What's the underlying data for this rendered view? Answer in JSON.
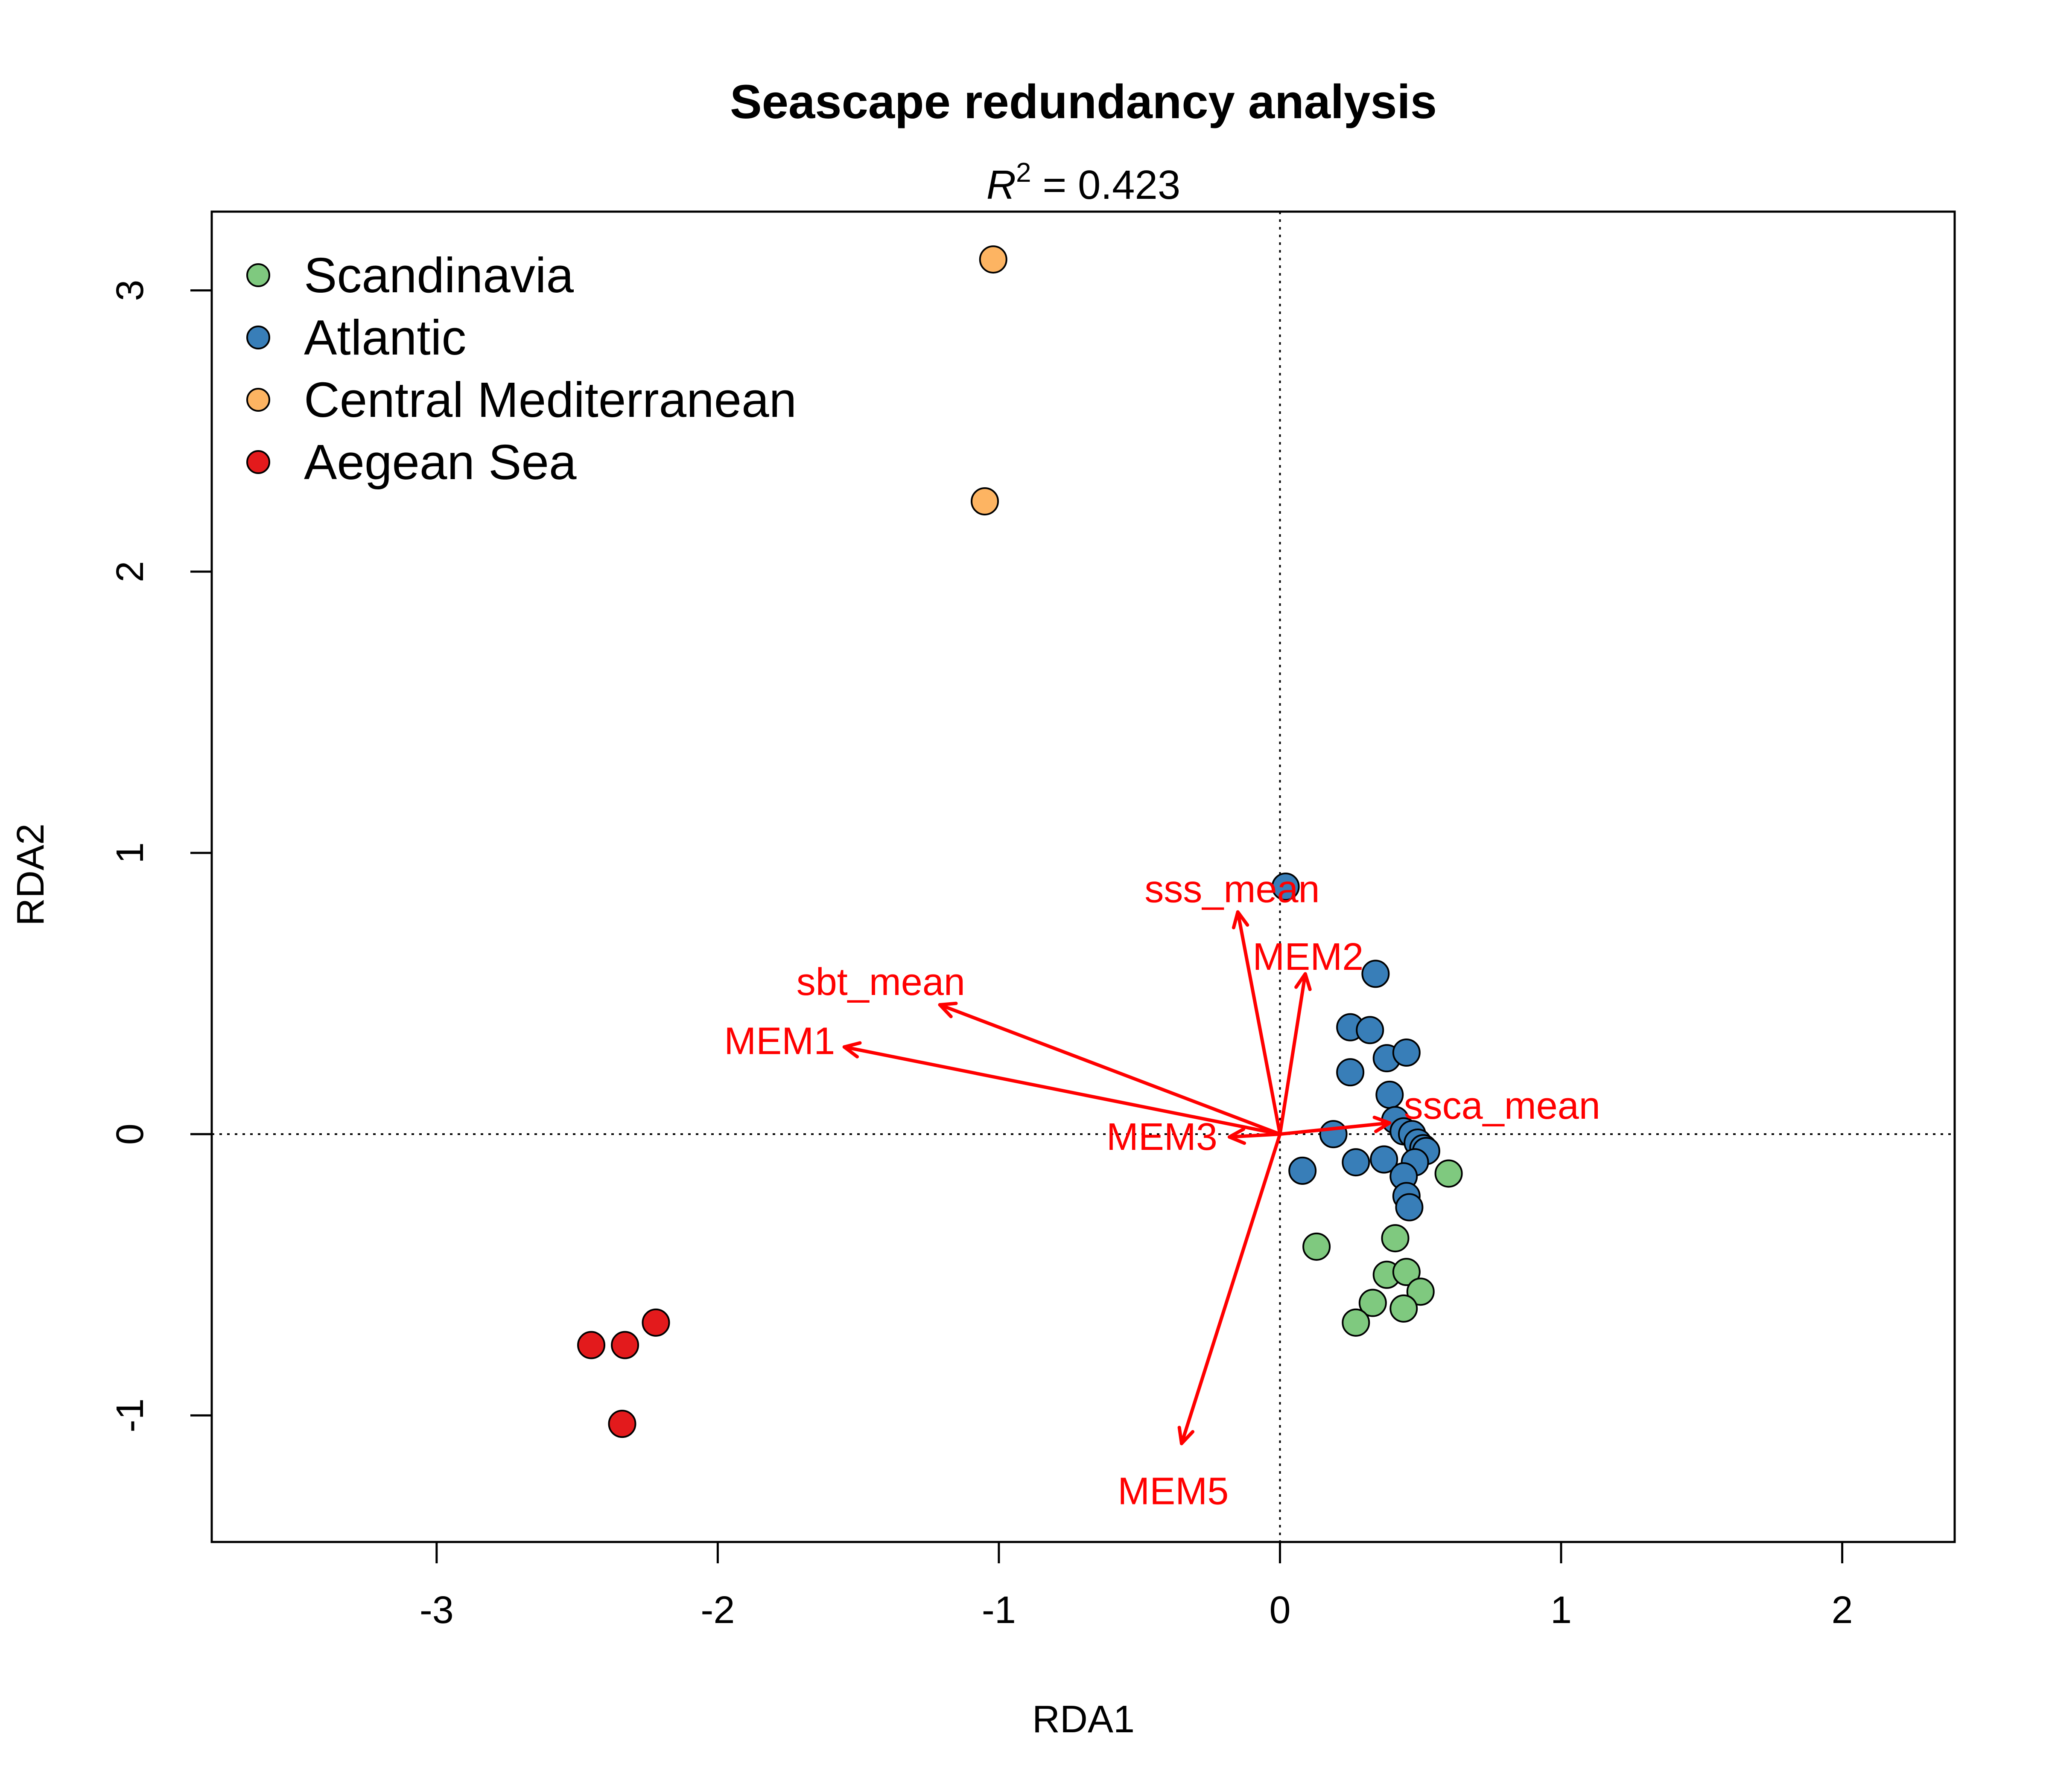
{
  "chart_data": {
    "type": "scatter",
    "title": "Seascape redundancy analysis",
    "subtitle": {
      "symbol": "R",
      "superscript": "2",
      "text": " =  0.423"
    },
    "xlabel": "RDA1",
    "ylabel": "RDA2",
    "xlim": [
      -3.8,
      2.4
    ],
    "ylim": [
      -1.45,
      3.28
    ],
    "xticks": [
      -3,
      -2,
      -1,
      0,
      1,
      2
    ],
    "yticks": [
      -1,
      0,
      1,
      2,
      3
    ],
    "reference_lines": {
      "x": 0,
      "y": 0,
      "style": "dotted"
    },
    "legend_position": "top-left",
    "series": [
      {
        "name": "Scandinavia",
        "color": "#7fc97f",
        "points": [
          [
            0.6,
            -0.14
          ],
          [
            0.13,
            -0.4
          ],
          [
            0.41,
            -0.37
          ],
          [
            0.38,
            -0.5
          ],
          [
            0.45,
            -0.49
          ],
          [
            0.5,
            -0.56
          ],
          [
            0.33,
            -0.6
          ],
          [
            0.44,
            -0.62
          ],
          [
            0.27,
            -0.67
          ]
        ]
      },
      {
        "name": "Atlantic",
        "color": "#387eb8",
        "points": [
          [
            0.02,
            0.88
          ],
          [
            0.34,
            0.57
          ],
          [
            0.25,
            0.38
          ],
          [
            0.32,
            0.37
          ],
          [
            0.38,
            0.27
          ],
          [
            0.45,
            0.29
          ],
          [
            0.25,
            0.22
          ],
          [
            0.39,
            0.14
          ],
          [
            0.41,
            0.05
          ],
          [
            0.44,
            0.01
          ],
          [
            0.47,
            0.0
          ],
          [
            0.49,
            -0.03
          ],
          [
            0.51,
            -0.05
          ],
          [
            0.52,
            -0.06
          ],
          [
            0.48,
            -0.1
          ],
          [
            0.19,
            0.0
          ],
          [
            0.27,
            -0.1
          ],
          [
            0.37,
            -0.09
          ],
          [
            0.44,
            -0.15
          ],
          [
            0.45,
            -0.22
          ],
          [
            0.46,
            -0.26
          ],
          [
            0.08,
            -0.13
          ]
        ]
      },
      {
        "name": "Central Mediterranean",
        "color": "#fdb462",
        "points": [
          [
            -1.02,
            3.11
          ],
          [
            -1.05,
            2.25
          ]
        ]
      },
      {
        "name": "Aegean Sea",
        "color": "#e31a1c",
        "points": [
          [
            -2.22,
            -0.67
          ],
          [
            -2.45,
            -0.75
          ],
          [
            -2.33,
            -0.75
          ],
          [
            -2.34,
            -1.03
          ]
        ]
      }
    ],
    "arrows": [
      {
        "label": "sss_mean",
        "x": -0.15,
        "y": 0.79,
        "label_x": -0.17,
        "label_y": 0.87
      },
      {
        "label": "MEM2",
        "x": 0.09,
        "y": 0.57,
        "label_x": 0.1,
        "label_y": 0.63
      },
      {
        "label": "sbt_mean",
        "x": -1.21,
        "y": 0.46,
        "label_x": -1.42,
        "label_y": 0.54
      },
      {
        "label": "MEM1",
        "x": -1.55,
        "y": 0.31,
        "label_x": -1.78,
        "label_y": 0.33
      },
      {
        "label": "MEM3",
        "x": -0.18,
        "y": -0.01,
        "label_x": -0.42,
        "label_y": -0.01
      },
      {
        "label": "ssca_mean",
        "x": 0.39,
        "y": 0.04,
        "label_x": 0.79,
        "label_y": 0.1
      },
      {
        "label": "MEM5",
        "x": -0.35,
        "y": -1.1,
        "label_x": -0.38,
        "label_y": -1.27
      }
    ],
    "arrow_color": "#ff0000"
  }
}
